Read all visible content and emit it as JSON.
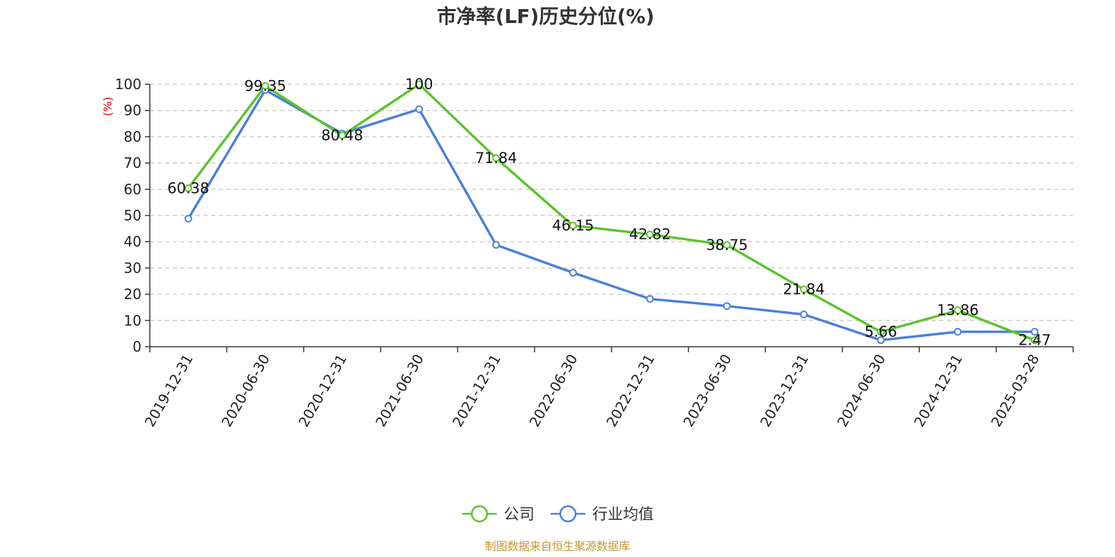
{
  "chart_data": {
    "type": "line",
    "title": "市净率(LF)历史分位(%)",
    "ylabel": "(%)",
    "xlabel": "",
    "categories": [
      "2019-12-31",
      "2020-06-30",
      "2020-12-31",
      "2021-06-30",
      "2021-12-31",
      "2022-06-30",
      "2022-12-31",
      "2023-06-30",
      "2023-12-31",
      "2024-06-30",
      "2024-12-31",
      "2025-03-28"
    ],
    "ylim": [
      0,
      100
    ],
    "yticks": [
      0,
      10,
      20,
      30,
      40,
      50,
      60,
      70,
      80,
      90,
      100
    ],
    "grid": true,
    "legend_position": "bottom-center",
    "series": [
      {
        "name": "公司",
        "color": "#5bc42a",
        "values": [
          60.38,
          99.35,
          80.48,
          100,
          71.84,
          46.15,
          42.82,
          38.75,
          21.84,
          5.66,
          13.86,
          2.47
        ],
        "labels": [
          "60.38",
          "99.35",
          "80.48",
          "100",
          "71.84",
          "46.15",
          "42.82",
          "38.75",
          "21.84",
          "5.66",
          "13.86",
          "2.47"
        ]
      },
      {
        "name": "行业均值",
        "color": "#4a7fdc",
        "values": [
          48.8,
          97.8,
          81.2,
          90.5,
          38.8,
          28.2,
          18.2,
          15.5,
          12.3,
          2.5,
          5.7,
          5.7
        ]
      }
    ],
    "source": "制图数据来自恒生聚源数据库"
  }
}
